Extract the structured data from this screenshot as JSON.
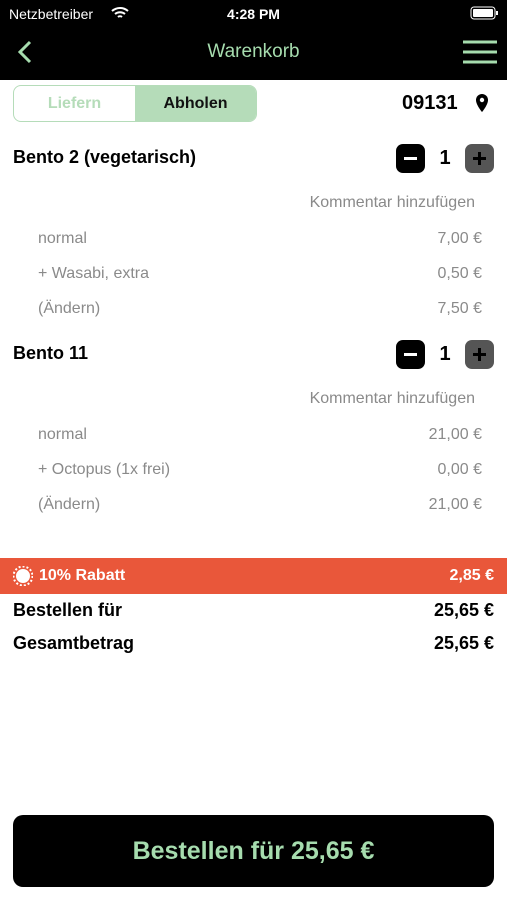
{
  "status_bar": {
    "carrier": "Netzbetreiber",
    "time": "4:28 PM"
  },
  "nav": {
    "title": "Warenkorb"
  },
  "mode": {
    "options": [
      "Liefern",
      "Abholen"
    ],
    "zip": "09131"
  },
  "items": [
    {
      "name": "Bento 2 (vegetarisch)",
      "quantity": 1,
      "comment": "Kommentar hinzufügen",
      "lines": [
        [
          "normal",
          "7,00 €"
        ],
        [
          "+ Wasabi, extra",
          "0,50 €"
        ],
        [
          "(Ändern)",
          "7,50 €"
        ]
      ]
    },
    {
      "name": "Bento 11",
      "quantity": 1,
      "comment": "Kommentar hinzufügen",
      "lines": [
        [
          "normal",
          "21,00 €"
        ],
        [
          "+ Octopus (1x frei)",
          "0,00 €"
        ],
        [
          "(Ändern)",
          "21,00 €"
        ]
      ]
    }
  ],
  "discount": {
    "label": "10% Rabatt",
    "amount": "2,85 €"
  },
  "totals": [
    [
      "Bestellen für",
      "25,65 €"
    ],
    [
      "Gesamtbetrag",
      "25,65 €"
    ]
  ],
  "order_button": "Bestellen für 25,65 €"
}
